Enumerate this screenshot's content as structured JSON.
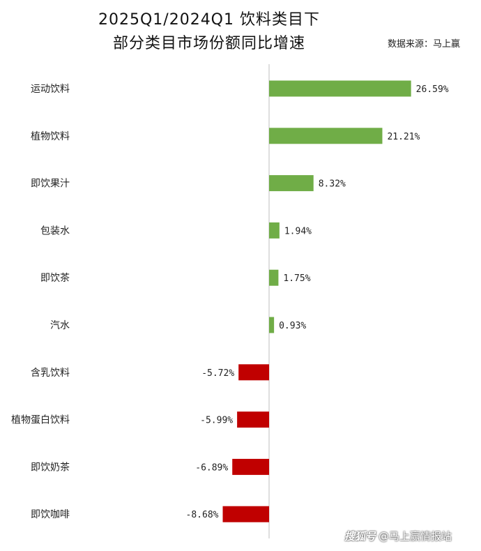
{
  "chart_data": {
    "type": "bar",
    "orientation": "horizontal",
    "title_line1": "2025Q1/2024Q1 饮料类目下",
    "title_line2": "部分类目市场份额同比增速",
    "source": "数据来源：马上赢",
    "categories": [
      "运动饮料",
      "植物饮料",
      "即饮果汁",
      "包装水",
      "即饮茶",
      "汽水",
      "含乳饮料",
      "植物蛋白饮料",
      "即饮奶茶",
      "即饮咖啡"
    ],
    "values": [
      26.59,
      21.21,
      8.32,
      1.94,
      1.75,
      0.93,
      -5.72,
      -5.99,
      -6.89,
      -8.68
    ],
    "value_labels": [
      "26.59%",
      "21.21%",
      "8.32%",
      "1.94%",
      "1.75%",
      "0.93%",
      "-5.72%",
      "-5.99%",
      "-6.89%",
      "-8.68%"
    ],
    "colors": {
      "positive": "#70ad47",
      "negative": "#c00000",
      "axis": "#bfbfbf"
    },
    "grid": false,
    "legend": "none"
  },
  "watermark": {
    "logo": "搜狐号",
    "text": "@马上赢情报站"
  }
}
